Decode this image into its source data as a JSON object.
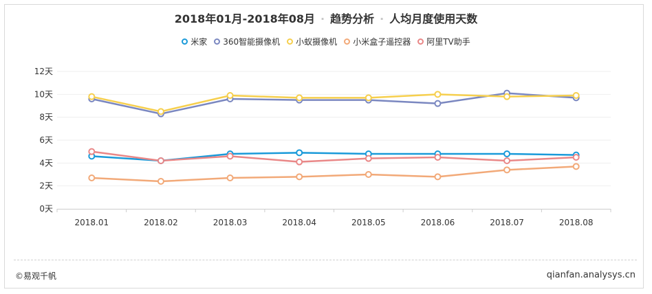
{
  "header": {
    "date_range": "2018年01月-2018年08月",
    "analysis": "趋势分析",
    "metric": "人均月度使用天数"
  },
  "footer": {
    "copyright": "©易观千帆",
    "site": "qianfan.analysys.cn"
  },
  "chart_data": {
    "type": "line",
    "title": "2018年01月-2018年08月 · 趋势分析 · 人均月度使用天数",
    "xlabel": "",
    "ylabel": "",
    "categories": [
      "2018.01",
      "2018.02",
      "2018.03",
      "2018.04",
      "2018.05",
      "2018.06",
      "2018.07",
      "2018.08"
    ],
    "y_ticks": [
      "0天",
      "2天",
      "4天",
      "6天",
      "8天",
      "10天",
      "12天"
    ],
    "ylim": [
      0,
      12
    ],
    "grid": true,
    "legend_position": "top-center",
    "series": [
      {
        "name": "米家",
        "color": "#1a9ad9",
        "values": [
          4.6,
          4.2,
          4.8,
          4.9,
          4.8,
          4.8,
          4.8,
          4.7
        ]
      },
      {
        "name": "360智能摄像机",
        "color": "#7a87c0",
        "values": [
          9.6,
          8.3,
          9.6,
          9.5,
          9.5,
          9.2,
          10.1,
          9.7
        ]
      },
      {
        "name": "小蚁摄像机",
        "color": "#f6cf4d",
        "values": [
          9.8,
          8.5,
          9.9,
          9.7,
          9.7,
          10.0,
          9.8,
          9.9
        ]
      },
      {
        "name": "小米盒子遥控器",
        "color": "#f2a978",
        "values": [
          2.7,
          2.4,
          2.7,
          2.8,
          3.0,
          2.8,
          3.4,
          3.7
        ]
      },
      {
        "name": "阿里TV助手",
        "color": "#e98787",
        "values": [
          5.0,
          4.2,
          4.6,
          4.1,
          4.4,
          4.5,
          4.2,
          4.5
        ]
      }
    ]
  }
}
